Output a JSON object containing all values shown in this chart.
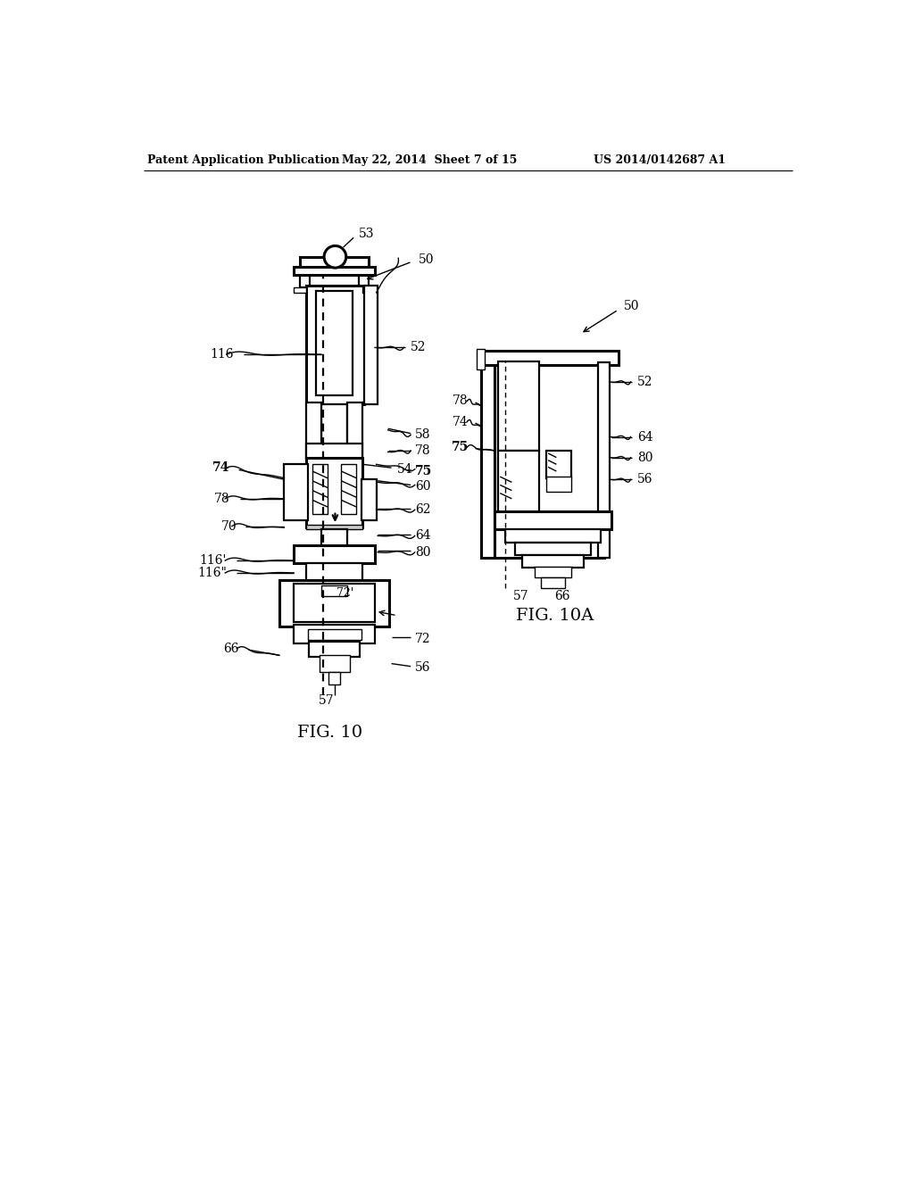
{
  "bg_color": "#ffffff",
  "header_left": "Patent Application Publication",
  "header_mid": "May 22, 2014  Sheet 7 of 15",
  "header_right": "US 2014/0142687 A1",
  "fig_label_main": "FIG. 10",
  "fig_label_inset": "FIG. 10A"
}
